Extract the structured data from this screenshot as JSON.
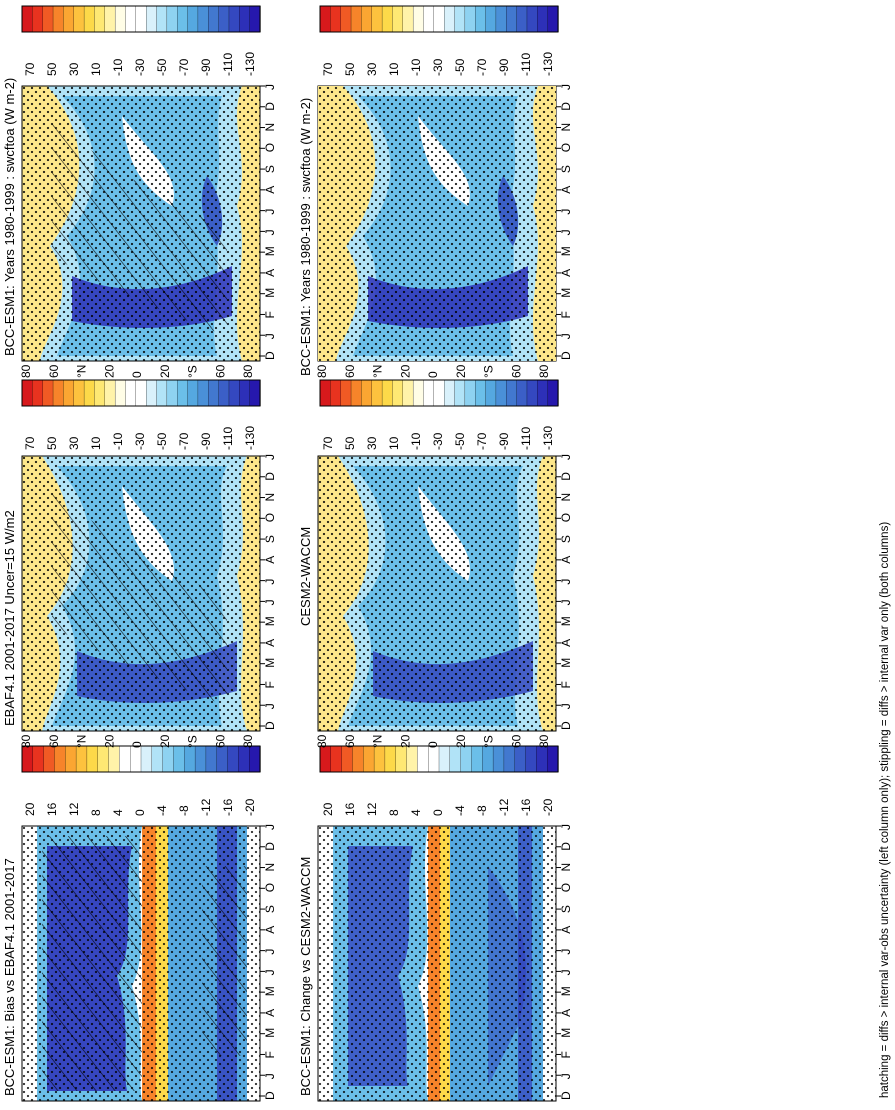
{
  "figure": {
    "footnote": "hatching = diffs > internal var-obs uncertainty (left column only); stippling = diffs > internal var only (both columns)"
  },
  "colorbars": {
    "absolute": {
      "labels": [
        "70",
        "50",
        "30",
        "10",
        "-10",
        "-30",
        "-50",
        "-70",
        "-90",
        "-110",
        "-130"
      ],
      "colors": [
        "#d7191c",
        "#e8331f",
        "#f05a24",
        "#f7842a",
        "#fba632",
        "#fdc23e",
        "#fdd949",
        "#fee873",
        "#fff3a9",
        "#fffde6",
        "#ffffff",
        "#ffffff",
        "#d9f1fb",
        "#b1e3f7",
        "#8ed2f1",
        "#6bbfe9",
        "#55a8e0",
        "#4a90d8",
        "#4278cf",
        "#3b5fc7",
        "#3448c0",
        "#2d30b8",
        "#2618ad"
      ]
    },
    "difference": {
      "labels": [
        "20",
        "16",
        "12",
        "8",
        "4",
        "0",
        "-4",
        "-8",
        "-12",
        "-16",
        "-20"
      ],
      "colors": [
        "#d7191c",
        "#e8331f",
        "#f05a24",
        "#f7842a",
        "#fba632",
        "#fdc23e",
        "#fdd949",
        "#fee873",
        "#fff3a9",
        "#ffffff",
        "#ffffff",
        "#d9f1fb",
        "#b1e3f7",
        "#8ed2f1",
        "#6bbfe9",
        "#55a8e0",
        "#4a90d8",
        "#4278cf",
        "#3b5fc7",
        "#3448c0",
        "#2d30b8",
        "#2618ad"
      ]
    }
  },
  "axes": {
    "months": [
      "D",
      "J",
      "F",
      "M",
      "A",
      "M",
      "J",
      "J",
      "A",
      "S",
      "O",
      "N",
      "D",
      "J"
    ],
    "lat_ticks": [
      "80",
      "60",
      "°N",
      "20",
      "0",
      "20",
      "°S",
      "60",
      "80"
    ]
  },
  "chart_data": [
    {
      "type": "heatmap",
      "panel": "top-left",
      "title": "BCC-ESM1: Years 1980-1999 : swcftoa (W m-2)",
      "field": "swcftoa",
      "units": "W m-2",
      "x_label": "month",
      "y_label": "latitude",
      "hatching": true,
      "stippling": true,
      "colorbar": "absolute",
      "value_range": [
        -140,
        80
      ]
    },
    {
      "type": "heatmap",
      "panel": "top-right",
      "title": "BCC-ESM1: Years 1980-1999 : swcftoa (W m-2)",
      "field": "swcftoa",
      "units": "W m-2",
      "x_label": "month",
      "y_label": "latitude",
      "hatching": false,
      "stippling": true,
      "colorbar": "absolute",
      "value_range": [
        -140,
        80
      ]
    },
    {
      "type": "heatmap",
      "panel": "middle-left",
      "title": "EBAF4.1 2001-2017 Uncer=15 W/m2",
      "field": "swcftoa",
      "units": "W m-2",
      "x_label": "month",
      "y_label": "latitude",
      "hatching": true,
      "stippling": true,
      "colorbar": "absolute",
      "value_range": [
        -140,
        80
      ]
    },
    {
      "type": "heatmap",
      "panel": "middle-right",
      "title": "CESM2-WACCM",
      "field": "swcftoa",
      "units": "W m-2",
      "x_label": "month",
      "y_label": "latitude",
      "hatching": false,
      "stippling": true,
      "colorbar": "absolute",
      "value_range": [
        -140,
        80
      ]
    },
    {
      "type": "heatmap",
      "panel": "bottom-left",
      "title": "BCC-ESM1: Bias vs EBAF4.1 2001-2017",
      "field": "swcftoa difference",
      "units": "W m-2",
      "x_label": "month",
      "y_label": "latitude",
      "hatching": true,
      "stippling": true,
      "colorbar": "difference",
      "value_range": [
        -22,
        22
      ]
    },
    {
      "type": "heatmap",
      "panel": "bottom-right",
      "title": "BCC-ESM1: Change vs CESM2-WACCM",
      "field": "swcftoa difference",
      "units": "W m-2",
      "x_label": "month",
      "y_label": "latitude",
      "hatching": false,
      "stippling": true,
      "colorbar": "difference",
      "value_range": [
        -22,
        22
      ]
    }
  ]
}
